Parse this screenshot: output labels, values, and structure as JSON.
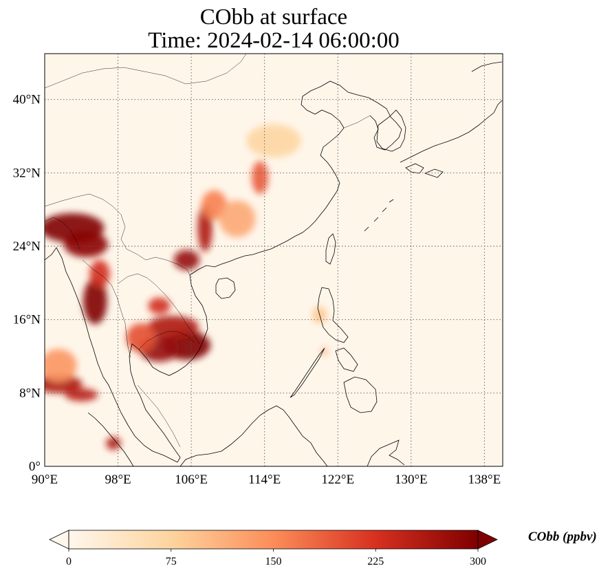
{
  "title": {
    "line1": "CObb at surface",
    "line2": "Time: 2024-02-14 06:00:00"
  },
  "map": {
    "variable": "CObb",
    "level": "surface",
    "extent": {
      "lon_min": 90,
      "lon_max": 140,
      "lat_min": 0,
      "lat_max": 45
    },
    "lon_ticks": [
      90,
      98,
      106,
      114,
      122,
      130,
      138
    ],
    "lon_tick_labels": [
      "90°E",
      "98°E",
      "106°E",
      "114°E",
      "122°E",
      "130°E",
      "138°E"
    ],
    "lat_ticks": [
      0,
      8,
      16,
      24,
      32,
      40
    ],
    "lat_tick_labels": [
      "0°",
      "8°N",
      "16°N",
      "24°N",
      "32°N",
      "40°N"
    ],
    "gridlines": true,
    "colormap": "OrRd",
    "hotspots": [
      {
        "lon": 93.0,
        "lat": 26.0,
        "value": 300,
        "rlon": 3.5,
        "rlat": 1.6
      },
      {
        "lon": 94.5,
        "lat": 24.2,
        "value": 290,
        "rlon": 2.4,
        "rlat": 1.4
      },
      {
        "lon": 95.5,
        "lat": 18.0,
        "value": 300,
        "rlon": 1.3,
        "rlat": 2.5
      },
      {
        "lon": 96.0,
        "lat": 21.0,
        "value": 230,
        "rlon": 1.1,
        "rlat": 1.5
      },
      {
        "lon": 91.5,
        "lat": 9.0,
        "value": 260,
        "rlon": 2.6,
        "rlat": 1.0
      },
      {
        "lon": 94.0,
        "lat": 7.8,
        "value": 250,
        "rlon": 1.8,
        "rlat": 0.7
      },
      {
        "lon": 91.5,
        "lat": 11.0,
        "value": 140,
        "rlon": 2.0,
        "rlat": 1.8
      },
      {
        "lon": 105.5,
        "lat": 13.2,
        "value": 300,
        "rlon": 2.6,
        "rlat": 1.6
      },
      {
        "lon": 102.5,
        "lat": 12.8,
        "value": 280,
        "rlon": 2.2,
        "rlat": 1.4
      },
      {
        "lon": 104.0,
        "lat": 15.2,
        "value": 260,
        "rlon": 2.8,
        "rlat": 1.2
      },
      {
        "lon": 100.5,
        "lat": 14.0,
        "value": 200,
        "rlon": 1.6,
        "rlat": 1.6
      },
      {
        "lon": 102.5,
        "lat": 17.5,
        "value": 230,
        "rlon": 1.2,
        "rlat": 0.9
      },
      {
        "lon": 105.5,
        "lat": 22.5,
        "value": 280,
        "rlon": 1.4,
        "rlat": 1.1
      },
      {
        "lon": 107.5,
        "lat": 26.0,
        "value": 260,
        "rlon": 0.8,
        "rlat": 2.6
      },
      {
        "lon": 108.5,
        "lat": 28.5,
        "value": 160,
        "rlon": 1.4,
        "rlat": 1.6
      },
      {
        "lon": 111.0,
        "lat": 27.0,
        "value": 120,
        "rlon": 2.0,
        "rlat": 2.0
      },
      {
        "lon": 113.5,
        "lat": 31.5,
        "value": 190,
        "rlon": 0.9,
        "rlat": 1.8
      },
      {
        "lon": 115.0,
        "lat": 35.5,
        "value": 70,
        "rlon": 3.0,
        "rlat": 1.8
      },
      {
        "lon": 97.5,
        "lat": 2.5,
        "value": 260,
        "rlon": 0.8,
        "rlat": 0.7
      },
      {
        "lon": 120.0,
        "lat": 16.5,
        "value": 90,
        "rlon": 0.8,
        "rlat": 0.9
      },
      {
        "lon": 120.5,
        "lat": 12.5,
        "value": 120,
        "rlon": 0.3,
        "rlat": 0.5
      }
    ]
  },
  "colorbar": {
    "label": "CObb (ppbv)",
    "min": 0,
    "max": 300,
    "ticks": [
      0,
      75,
      150,
      225,
      300
    ],
    "tick_labels": [
      "0",
      "75",
      "150",
      "225",
      "300"
    ],
    "extend": "both",
    "colors": [
      "#fff7ec",
      "#fdd49e",
      "#fc8d59",
      "#d7301f",
      "#7f0000"
    ]
  }
}
